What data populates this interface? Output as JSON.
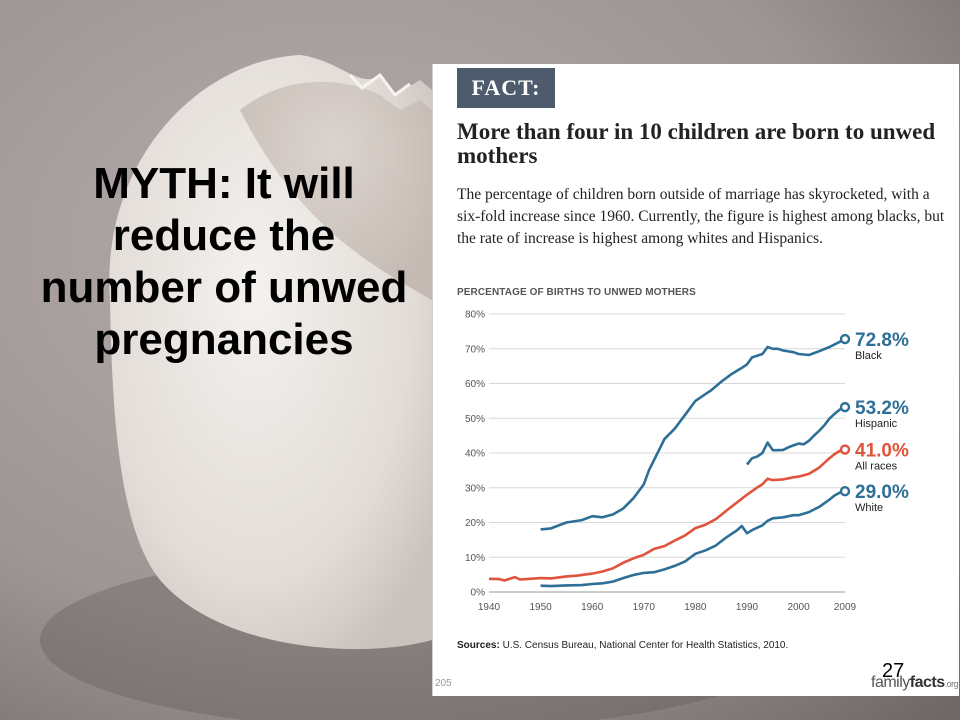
{
  "slide": {
    "myth_text": "MYTH: It will reduce the number of unwed pregnancies",
    "slide_number": "27"
  },
  "panel": {
    "fact_label": "FACT:",
    "headline": "More than four in 10 children are born to unwed mothers",
    "description": "The percentage of children born outside of marriage has skyrocketed, with a six-fold increase since 1960. Currently, the figure is highest among blacks, but the rate of increase is highest among whites and Hispanics.",
    "sources_label": "Sources:",
    "sources_text": "U.S. Census Bureau, National Center for Health Statistics, 2010.",
    "corner_id": "205",
    "brand_part1": "family",
    "brand_part2": "facts",
    "brand_part3": ".org"
  },
  "colors": {
    "blue": "#2d6f96",
    "red": "#e0533c",
    "grid": "#d8d8d8",
    "badge": "#4d5b6c"
  },
  "chart_data": {
    "type": "line",
    "title": "PERCENTAGE OF BIRTHS TO UNWED MOTHERS",
    "xlabel": "",
    "ylabel": "",
    "xlim": [
      1940,
      2009
    ],
    "ylim": [
      0,
      80
    ],
    "x_ticks": [
      "1940",
      "1950",
      "1960",
      "1970",
      "1980",
      "1990",
      "2000",
      "2009"
    ],
    "x_tick_values": [
      1940,
      1950,
      1960,
      1970,
      1980,
      1990,
      2000,
      2009
    ],
    "y_ticks": [
      "0%",
      "10%",
      "20%",
      "30%",
      "40%",
      "50%",
      "60%",
      "70%",
      "80%"
    ],
    "y_tick_values": [
      0,
      10,
      20,
      30,
      40,
      50,
      60,
      70,
      80
    ],
    "grid": true,
    "legend": "right",
    "series": [
      {
        "name": "Black",
        "end_label": "72.8%",
        "color": "#2d6f96",
        "points": [
          [
            1950,
            18
          ],
          [
            1952,
            18.3
          ],
          [
            1955,
            20
          ],
          [
            1958,
            20.7
          ],
          [
            1960,
            21.8
          ],
          [
            1962,
            21.5
          ],
          [
            1964,
            22.3
          ],
          [
            1966,
            24
          ],
          [
            1968,
            27
          ],
          [
            1970,
            31
          ],
          [
            1971,
            35
          ],
          [
            1973,
            41
          ],
          [
            1974,
            44
          ],
          [
            1976,
            47
          ],
          [
            1978,
            51
          ],
          [
            1980,
            55
          ],
          [
            1982,
            57
          ],
          [
            1983,
            58
          ],
          [
            1985,
            60.5
          ],
          [
            1987,
            62.7
          ],
          [
            1989,
            64.5
          ],
          [
            1990,
            65.5
          ],
          [
            1991,
            67.5
          ],
          [
            1993,
            68.5
          ],
          [
            1994,
            70.5
          ],
          [
            1995,
            70
          ],
          [
            1996,
            70
          ],
          [
            1997,
            69.5
          ],
          [
            1999,
            69
          ],
          [
            2000,
            68.5
          ],
          [
            2002,
            68.2
          ],
          [
            2004,
            69.3
          ],
          [
            2006,
            70.5
          ],
          [
            2008,
            72
          ],
          [
            2009,
            72.8
          ]
        ]
      },
      {
        "name": "Hispanic",
        "end_label": "53.2%",
        "color": "#2d6f96",
        "points": [
          [
            1990,
            36.7
          ],
          [
            1991,
            38.5
          ],
          [
            1992,
            39
          ],
          [
            1993,
            40
          ],
          [
            1994,
            43
          ],
          [
            1995,
            40.8
          ],
          [
            1996,
            40.8
          ],
          [
            1997,
            40.9
          ],
          [
            1998,
            41.6
          ],
          [
            1999,
            42.2
          ],
          [
            2000,
            42.7
          ],
          [
            2001,
            42.5
          ],
          [
            2002,
            43.5
          ],
          [
            2003,
            45
          ],
          [
            2004,
            46.4
          ],
          [
            2005,
            48
          ],
          [
            2006,
            49.9
          ],
          [
            2007,
            51.3
          ],
          [
            2008,
            52.5
          ],
          [
            2009,
            53.2
          ]
        ]
      },
      {
        "name": "All races",
        "end_label": "41.0%",
        "color": "#e0533c",
        "points": [
          [
            1940,
            3.8
          ],
          [
            1942,
            3.7
          ],
          [
            1943,
            3.3
          ],
          [
            1945,
            4.3
          ],
          [
            1946,
            3.6
          ],
          [
            1948,
            3.8
          ],
          [
            1950,
            4
          ],
          [
            1952,
            3.9
          ],
          [
            1955,
            4.5
          ],
          [
            1957,
            4.7
          ],
          [
            1960,
            5.3
          ],
          [
            1962,
            5.9
          ],
          [
            1964,
            6.8
          ],
          [
            1966,
            8.4
          ],
          [
            1968,
            9.7
          ],
          [
            1970,
            10.7
          ],
          [
            1972,
            12.4
          ],
          [
            1974,
            13.2
          ],
          [
            1976,
            14.8
          ],
          [
            1978,
            16.3
          ],
          [
            1980,
            18.4
          ],
          [
            1982,
            19.4
          ],
          [
            1984,
            21
          ],
          [
            1986,
            23.4
          ],
          [
            1988,
            25.7
          ],
          [
            1990,
            28
          ],
          [
            1992,
            30.1
          ],
          [
            1993,
            31
          ],
          [
            1994,
            32.6
          ],
          [
            1995,
            32.2
          ],
          [
            1997,
            32.4
          ],
          [
            1999,
            33
          ],
          [
            2000,
            33.2
          ],
          [
            2002,
            34
          ],
          [
            2004,
            35.8
          ],
          [
            2006,
            38.5
          ],
          [
            2007,
            39.7
          ],
          [
            2008,
            40.6
          ],
          [
            2009,
            41
          ]
        ]
      },
      {
        "name": "White",
        "end_label": "29.0%",
        "color": "#2d6f96",
        "points": [
          [
            1950,
            1.8
          ],
          [
            1952,
            1.7
          ],
          [
            1955,
            1.9
          ],
          [
            1958,
            2
          ],
          [
            1960,
            2.3
          ],
          [
            1962,
            2.5
          ],
          [
            1964,
            3
          ],
          [
            1966,
            4
          ],
          [
            1968,
            4.9
          ],
          [
            1970,
            5.5
          ],
          [
            1972,
            5.7
          ],
          [
            1974,
            6.5
          ],
          [
            1976,
            7.5
          ],
          [
            1978,
            8.8
          ],
          [
            1980,
            11
          ],
          [
            1982,
            12
          ],
          [
            1984,
            13.4
          ],
          [
            1986,
            15.7
          ],
          [
            1988,
            17.7
          ],
          [
            1989,
            19
          ],
          [
            1990,
            16.9
          ],
          [
            1991,
            17.8
          ],
          [
            1992,
            18.5
          ],
          [
            1993,
            19.2
          ],
          [
            1994,
            20.5
          ],
          [
            1995,
            21.2
          ],
          [
            1997,
            21.5
          ],
          [
            1999,
            22.1
          ],
          [
            2000,
            22.1
          ],
          [
            2002,
            23
          ],
          [
            2004,
            24.5
          ],
          [
            2006,
            26.6
          ],
          [
            2007,
            27.8
          ],
          [
            2008,
            28.6
          ],
          [
            2009,
            29
          ]
        ]
      }
    ]
  }
}
